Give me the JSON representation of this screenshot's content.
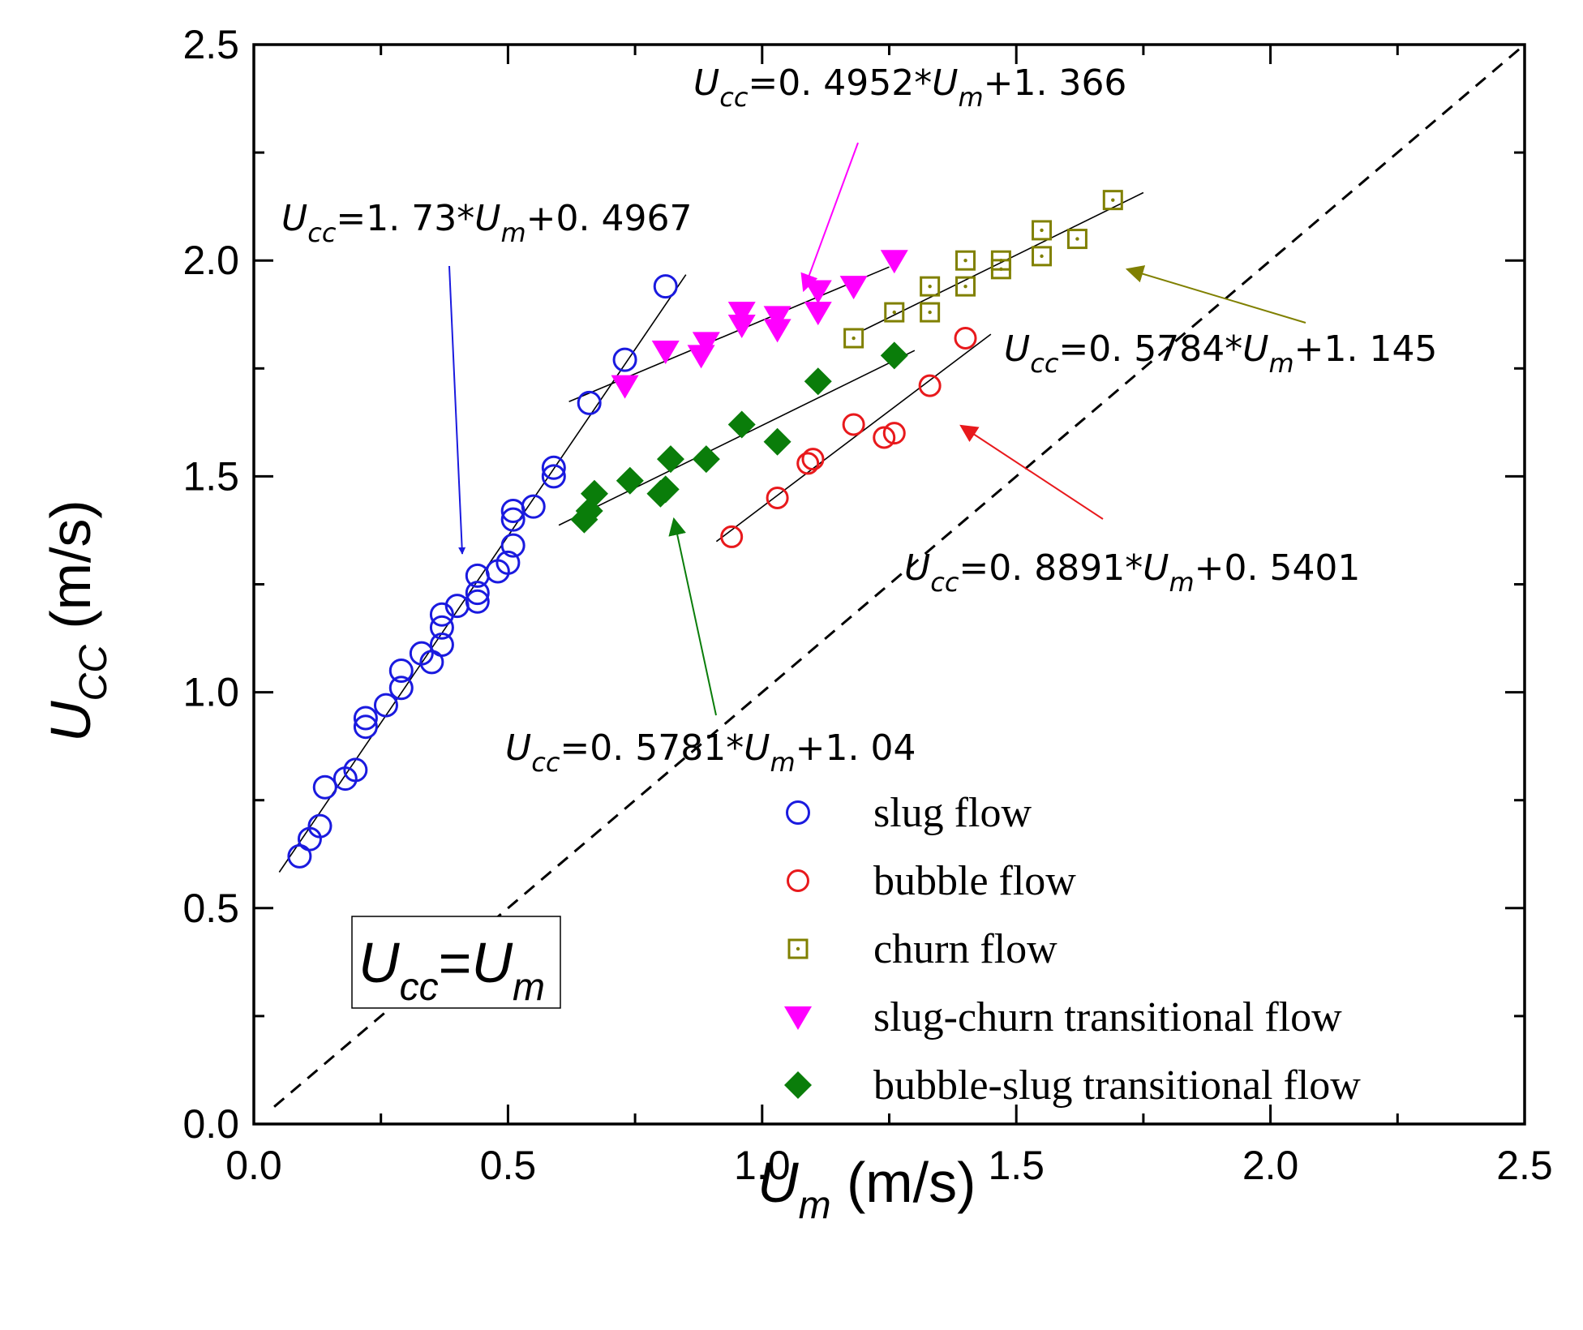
{
  "chart_data": {
    "type": "scatter",
    "title": "",
    "xlabel": {
      "main": "U",
      "sub": "m",
      "unit": " (m/s)"
    },
    "ylabel": {
      "main": "U",
      "sub": "CC",
      "unit": " (m/s)"
    },
    "xlim": [
      0,
      2.5
    ],
    "ylim": [
      0,
      2.5
    ],
    "x_ticks": [
      "0.0",
      "0.5",
      "1.0",
      "1.5",
      "2.0",
      "2.5"
    ],
    "y_ticks": [
      "0.0",
      "0.5",
      "1.0",
      "1.5",
      "2.0",
      "2.5"
    ],
    "x_tick_values": [
      0,
      0.5,
      1.0,
      1.5,
      2.0,
      2.5
    ],
    "y_tick_values": [
      0,
      0.5,
      1.0,
      1.5,
      2.0,
      2.5
    ],
    "grid": false,
    "legend_position": "bottom-right",
    "colors": {
      "axis": "#000000",
      "slug": "#1a1adf",
      "bubble": "#e8191c",
      "churn": "#808000",
      "slug_churn": "#ff00ff",
      "bubble_slug": "#0a7d0a",
      "fit": "#000000"
    },
    "identity_line": {
      "x": [
        0.04,
        2.5
      ],
      "y": [
        0.04,
        2.5
      ],
      "style": "dashed"
    },
    "identity_label": {
      "main1": "U",
      "sub1": "cc",
      "mid": "=",
      "main2": "U",
      "sub2": "m"
    },
    "series": [
      {
        "name": "slug  flow",
        "key": "slug",
        "marker": "open-circle",
        "x": [
          0.09,
          0.11,
          0.13,
          0.14,
          0.18,
          0.2,
          0.22,
          0.22,
          0.26,
          0.29,
          0.29,
          0.33,
          0.35,
          0.37,
          0.37,
          0.37,
          0.4,
          0.44,
          0.44,
          0.44,
          0.48,
          0.5,
          0.51,
          0.51,
          0.51,
          0.55,
          0.59,
          0.59,
          0.66,
          0.73,
          0.81
        ],
        "y": [
          0.62,
          0.66,
          0.69,
          0.78,
          0.8,
          0.82,
          0.92,
          0.94,
          0.97,
          1.01,
          1.05,
          1.09,
          1.07,
          1.11,
          1.15,
          1.18,
          1.2,
          1.21,
          1.23,
          1.27,
          1.28,
          1.3,
          1.34,
          1.4,
          1.42,
          1.43,
          1.5,
          1.52,
          1.67,
          1.77,
          1.94
        ]
      },
      {
        "name": "bubble flow",
        "key": "bubble",
        "marker": "open-circle-small",
        "x": [
          0.94,
          1.03,
          1.09,
          1.1,
          1.18,
          1.24,
          1.26,
          1.33,
          1.4
        ],
        "y": [
          1.36,
          1.45,
          1.53,
          1.54,
          1.62,
          1.59,
          1.6,
          1.71,
          1.82
        ]
      },
      {
        "name": "churn flow",
        "key": "churn",
        "marker": "open-square-dot",
        "x": [
          1.18,
          1.26,
          1.33,
          1.33,
          1.4,
          1.4,
          1.47,
          1.47,
          1.55,
          1.55,
          1.62,
          1.69
        ],
        "y": [
          1.82,
          1.88,
          1.88,
          1.94,
          1.94,
          2.0,
          1.98,
          2.0,
          2.01,
          2.07,
          2.05,
          2.14
        ]
      },
      {
        "name": "slug-churn transitional flow",
        "key": "slug_churn",
        "marker": "filled-triangle-down",
        "x": [
          0.73,
          0.81,
          0.88,
          0.89,
          0.96,
          0.96,
          1.03,
          1.03,
          1.11,
          1.11,
          1.18,
          1.26
        ],
        "y": [
          1.71,
          1.79,
          1.78,
          1.81,
          1.85,
          1.88,
          1.84,
          1.87,
          1.88,
          1.93,
          1.94,
          2.0
        ]
      },
      {
        "name": "bubble-slug transitional flow",
        "key": "bubble_slug",
        "marker": "filled-diamond",
        "x": [
          0.65,
          0.66,
          0.67,
          0.74,
          0.8,
          0.81,
          0.82,
          0.89,
          0.96,
          1.03,
          1.11,
          1.26
        ],
        "y": [
          1.4,
          1.42,
          1.46,
          1.49,
          1.46,
          1.47,
          1.54,
          1.54,
          1.62,
          1.58,
          1.72,
          1.78
        ]
      }
    ],
    "fits": [
      {
        "key": "slug",
        "x": [
          0.05,
          0.85
        ],
        "slope": 1.73,
        "intercept": 0.4967
      },
      {
        "key": "slug_churn",
        "x": [
          0.62,
          1.25
        ],
        "slope": 0.4952,
        "intercept": 1.366
      },
      {
        "key": "churn",
        "x": [
          1.2,
          1.75
        ],
        "slope": 0.5784,
        "intercept": 1.145
      },
      {
        "key": "bubble",
        "x": [
          0.91,
          1.45
        ],
        "slope": 0.8891,
        "intercept": 0.5401
      },
      {
        "key": "bubble_slug",
        "x": [
          0.6,
          1.3
        ],
        "slope": 0.5781,
        "intercept": 1.04
      }
    ],
    "annotations": [
      {
        "key": "slug",
        "main": "U",
        "sub": "cc",
        "t1": "=1. 73*",
        "main2": "U",
        "sub2": "m",
        "t2": "+0. 4967"
      },
      {
        "key": "slug_churn",
        "main": "U",
        "sub": "cc",
        "t1": "=0. 4952*",
        "main2": "U",
        "sub2": "m",
        "t2": "+1. 366"
      },
      {
        "key": "churn",
        "main": "U",
        "sub": "cc",
        "t1": "=0. 5784*",
        "main2": "U",
        "sub2": "m",
        "t2": "+1. 145"
      },
      {
        "key": "bubble",
        "main": "U",
        "sub": "cc",
        "t1": "=0. 8891*",
        "main2": "U",
        "sub2": "m",
        "t2": "+0. 5401"
      },
      {
        "key": "bubble_slug",
        "main": "U",
        "sub": "cc",
        "t1": "=0. 5781*",
        "main2": "U",
        "sub2": "m",
        "t2": "+1. 04"
      }
    ]
  }
}
